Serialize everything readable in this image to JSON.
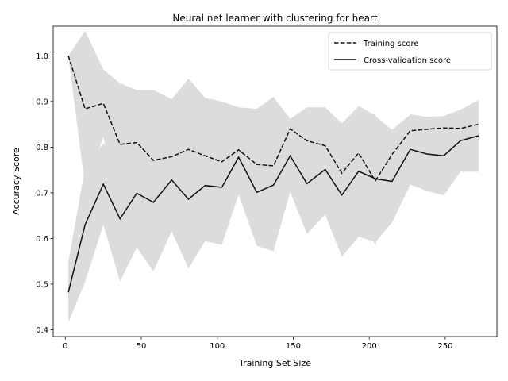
{
  "chart_data": {
    "type": "line",
    "title": "Neural net learner with clustering for heart",
    "xlabel": "Training Set Size",
    "ylabel": "Accuracy Score",
    "xlim": [
      -8,
      284
    ],
    "ylim": [
      0.385,
      1.065
    ],
    "x_ticks": [
      0,
      50,
      100,
      150,
      200,
      250
    ],
    "y_ticks": [
      0.4,
      0.5,
      0.6,
      0.7,
      0.8,
      0.9,
      1.0
    ],
    "y_tick_labels": [
      "0.4",
      "0.5",
      "0.6",
      "0.7",
      "0.8",
      "0.9",
      "1.0"
    ],
    "legend_position": "top-right",
    "band_color": "#dcdcdc",
    "line_color": "#111111",
    "x": [
      2,
      13,
      25,
      36,
      47,
      58,
      70,
      81,
      92,
      103,
      114,
      126,
      137,
      148,
      159,
      171,
      182,
      193,
      204,
      215,
      227,
      238,
      249,
      260,
      272
    ],
    "series": [
      {
        "name": "Training score",
        "style": "dashed",
        "values": [
          1.0,
          0.884,
          0.896,
          0.806,
          0.81,
          0.771,
          0.779,
          0.795,
          0.781,
          0.768,
          0.794,
          0.762,
          0.759,
          0.84,
          0.814,
          0.803,
          0.743,
          0.787,
          0.726,
          0.784,
          0.836,
          0.839,
          0.842,
          0.841,
          0.85
        ],
        "upper": [
          1.0,
          1.055,
          0.97,
          0.94,
          0.925,
          0.925,
          0.905,
          0.95,
          0.908,
          0.9,
          0.887,
          0.884,
          0.91,
          0.862,
          0.887,
          0.887,
          0.852,
          0.89,
          0.868,
          0.838,
          0.871,
          0.866,
          0.868,
          0.882,
          0.903
        ],
        "lower": [
          1.0,
          0.713,
          0.822,
          0.672,
          0.695,
          0.617,
          0.653,
          0.64,
          0.654,
          0.636,
          0.701,
          0.64,
          0.608,
          0.818,
          0.741,
          0.719,
          0.634,
          0.684,
          0.584,
          0.73,
          0.801,
          0.812,
          0.816,
          0.8,
          0.797
        ]
      },
      {
        "name": "Cross-validation score",
        "style": "solid",
        "values": [
          0.482,
          0.63,
          0.719,
          0.643,
          0.699,
          0.679,
          0.728,
          0.686,
          0.716,
          0.712,
          0.778,
          0.701,
          0.717,
          0.781,
          0.72,
          0.751,
          0.695,
          0.747,
          0.731,
          0.725,
          0.795,
          0.785,
          0.781,
          0.814,
          0.825
        ],
        "upper": [
          0.548,
          0.755,
          0.808,
          0.78,
          0.818,
          0.83,
          0.84,
          0.838,
          0.838,
          0.838,
          0.86,
          0.818,
          0.862,
          0.86,
          0.83,
          0.85,
          0.83,
          0.89,
          0.87,
          0.815,
          0.872,
          0.866,
          0.868,
          0.882,
          0.903
        ],
        "lower": [
          0.416,
          0.505,
          0.63,
          0.506,
          0.58,
          0.528,
          0.616,
          0.534,
          0.594,
          0.586,
          0.696,
          0.584,
          0.572,
          0.702,
          0.61,
          0.652,
          0.56,
          0.604,
          0.592,
          0.635,
          0.718,
          0.704,
          0.694,
          0.746,
          0.746
        ]
      }
    ]
  }
}
